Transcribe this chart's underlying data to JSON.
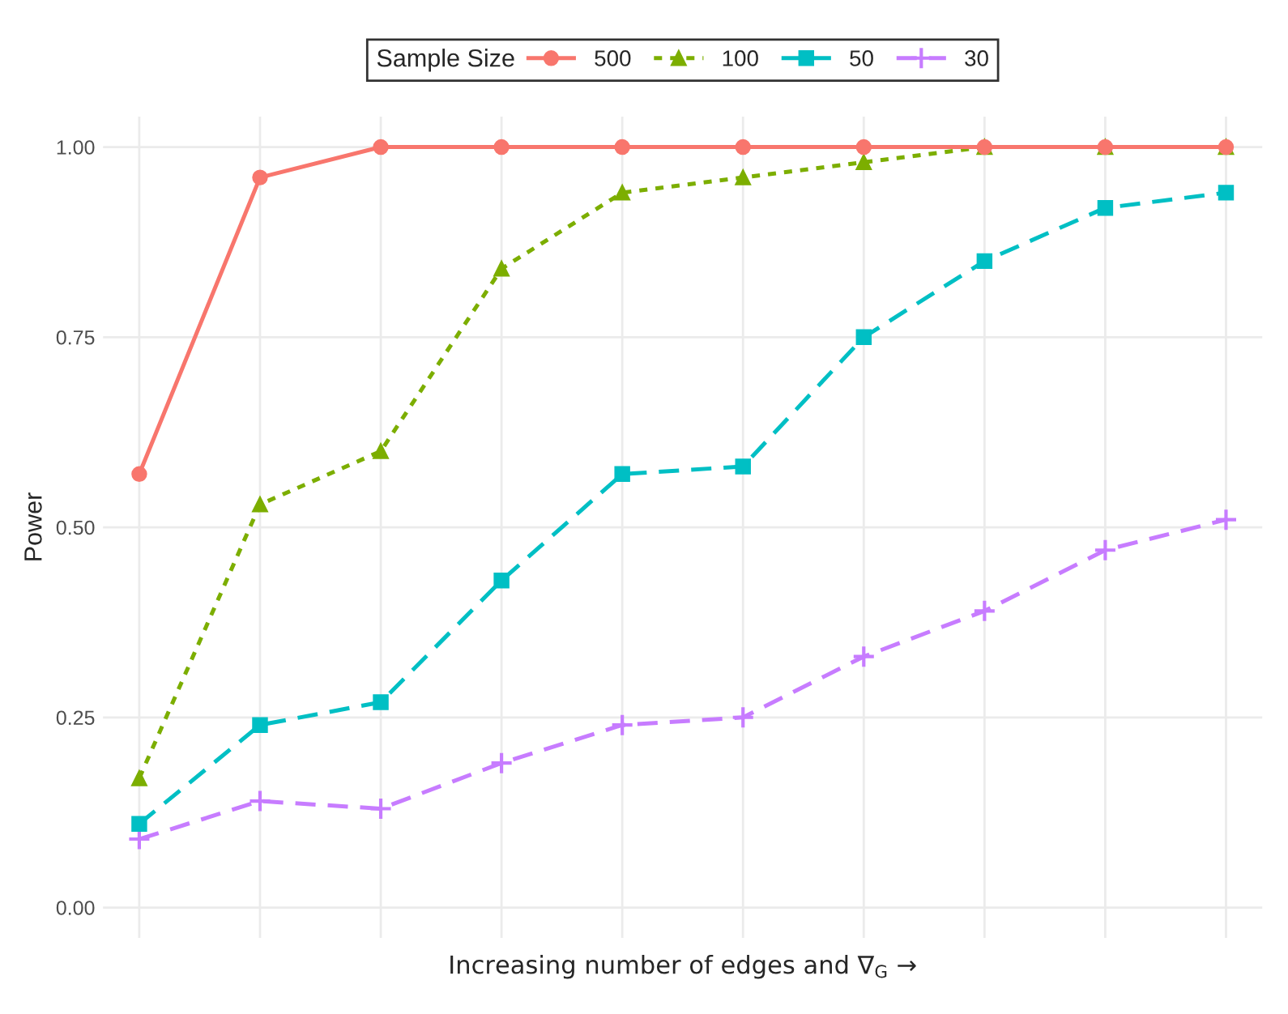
{
  "chart_data": {
    "type": "line",
    "xlabel": "Increasing number of edges and ∇$_{G}$ →",
    "ylabel": "Power",
    "legend_title": "Sample Size",
    "categories": [
      null,
      null,
      null,
      null,
      null,
      null,
      null,
      null,
      null,
      null
    ],
    "series": [
      {
        "name": "500",
        "color": "#f8766d",
        "marker": "circle",
        "line_style": "solid",
        "values": [
          0.57,
          0.96,
          1.0,
          1.0,
          1.0,
          1.0,
          1.0,
          1.0,
          1.0,
          1.0
        ]
      },
      {
        "name": "100",
        "color": "#7cae00",
        "marker": "triangle",
        "line_style": "dotted",
        "values": [
          0.17,
          0.53,
          0.6,
          0.84,
          0.94,
          0.96,
          0.98,
          1.0,
          1.0,
          1.0
        ]
      },
      {
        "name": "50",
        "color": "#00bfc4",
        "marker": "square",
        "line_style": "dashed",
        "values": [
          0.11,
          0.24,
          0.27,
          0.43,
          0.57,
          0.58,
          0.75,
          0.85,
          0.92,
          0.94
        ]
      },
      {
        "name": "30",
        "color": "#c77cff",
        "marker": "cross",
        "line_style": "dashed",
        "values": [
          0.09,
          0.14,
          0.13,
          0.19,
          0.24,
          0.25,
          0.33,
          0.39,
          0.47,
          0.51
        ]
      }
    ],
    "ylim": [
      -0.04,
      1.04
    ],
    "yticks": [
      {
        "value": 0,
        "label": "0.00"
      },
      {
        "value": 0.25,
        "label": "0.25"
      },
      {
        "value": 0.5,
        "label": "0.50"
      },
      {
        "value": 0.75,
        "label": "0.75"
      },
      {
        "value": 1,
        "label": "1.00"
      }
    ],
    "grid": true,
    "legend": "top"
  }
}
